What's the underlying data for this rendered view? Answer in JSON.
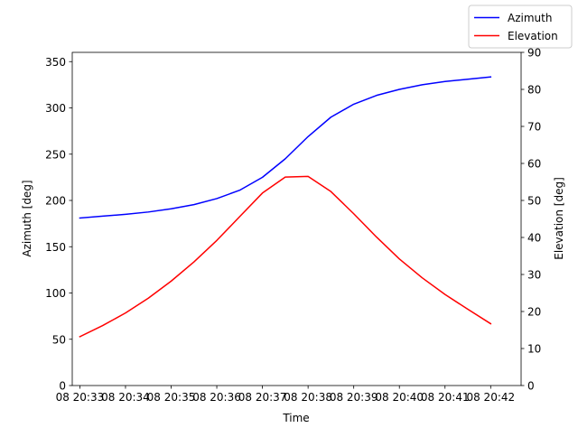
{
  "chart_data": {
    "type": "line",
    "xlabel": "Time",
    "ylabel_left": "Azimuth [deg]",
    "ylabel_right": "Elevation [deg]",
    "x_tick_labels": [
      "08 20:33",
      "08 20:34",
      "08 20:35",
      "08 20:36",
      "08 20:37",
      "08 20:38",
      "08 20:39",
      "08 20:40",
      "08 20:41",
      "08 20:42"
    ],
    "x": [
      "20:33:00",
      "20:33:30",
      "20:34:00",
      "20:34:30",
      "20:35:00",
      "20:35:30",
      "20:36:00",
      "20:36:30",
      "20:37:00",
      "20:37:30",
      "20:38:00",
      "20:38:30",
      "20:39:00",
      "20:39:30",
      "20:40:00",
      "20:40:30",
      "20:41:00",
      "20:41:30",
      "20:42:00"
    ],
    "xlim": [
      "20:32:50",
      "20:42:40"
    ],
    "ylim_left": [
      0,
      360
    ],
    "yticks_left": [
      0,
      50,
      100,
      150,
      200,
      250,
      300,
      350
    ],
    "ylim_right": [
      0,
      90
    ],
    "yticks_right": [
      0,
      10,
      20,
      30,
      40,
      50,
      60,
      70,
      80,
      90
    ],
    "grid": false,
    "legend_position": "top-right",
    "series": [
      {
        "name": "Azimuth",
        "axis": "left",
        "color": "#0000ff",
        "values": [
          181,
          183,
          185,
          187.5,
          191,
          195.5,
          202,
          211,
          225,
          245,
          269,
          290,
          304,
          313.5,
          320,
          325,
          328.5,
          331,
          333.5
        ]
      },
      {
        "name": "Elevation",
        "axis": "right",
        "color": "#ff0000",
        "values": [
          13.2,
          16.2,
          19.6,
          23.6,
          28.2,
          33.4,
          39.2,
          45.6,
          52.0,
          56.3,
          56.5,
          52.4,
          46.4,
          40.1,
          34.2,
          29.1,
          24.6,
          20.6,
          16.7
        ]
      }
    ]
  }
}
